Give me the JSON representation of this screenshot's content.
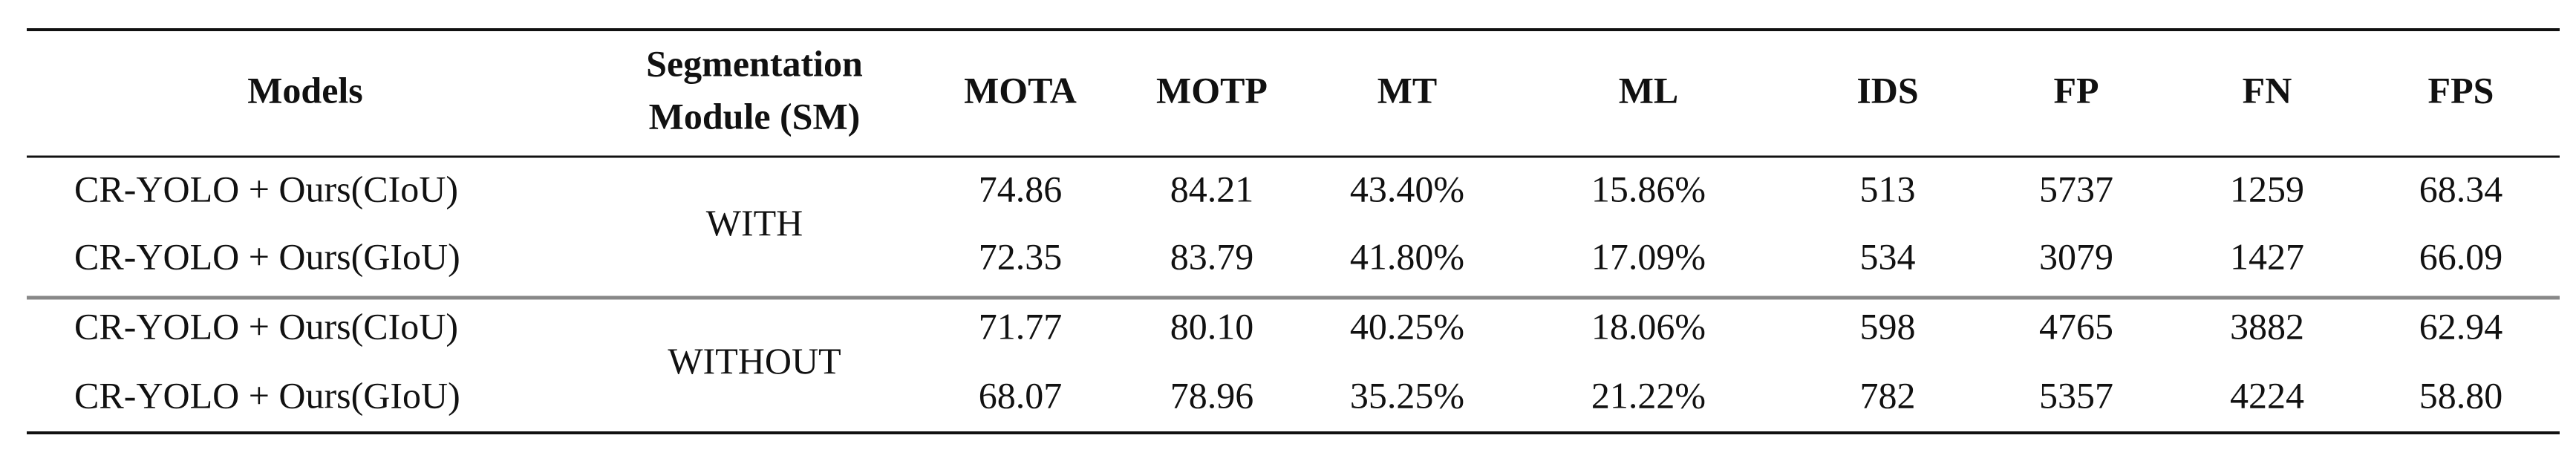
{
  "table": {
    "header": [
      "Models",
      [
        "Segmentation",
        "Module (SM)"
      ],
      "MOTA",
      "MOTP",
      "MT",
      "ML",
      "IDS",
      "FP",
      "FN",
      "FPS"
    ],
    "groups": [
      {
        "module": "WITH",
        "rows": [
          [
            "CR-YOLO  + Ours(CIoU)",
            "74.86",
            "84.21",
            "43.40%",
            "15.86%",
            "513",
            "5737",
            "1259",
            "68.34"
          ],
          [
            "CR-YOLO  + Ours(GIoU)",
            "72.35",
            "83.79",
            "41.80%",
            "17.09%",
            "534",
            "3079",
            "1427",
            "66.09"
          ]
        ]
      },
      {
        "module": "WITHOUT",
        "rows": [
          [
            "CR-YOLO  + Ours(CIoU)",
            "71.77",
            "80.10",
            "40.25%",
            "18.06%",
            "598",
            "4765",
            "3882",
            "62.94"
          ],
          [
            "CR-YOLO  + Ours(GIoU)",
            "68.07",
            "78.96",
            "35.25%",
            "21.22%",
            "782",
            "5357",
            "4224",
            "58.80"
          ]
        ]
      }
    ]
  }
}
